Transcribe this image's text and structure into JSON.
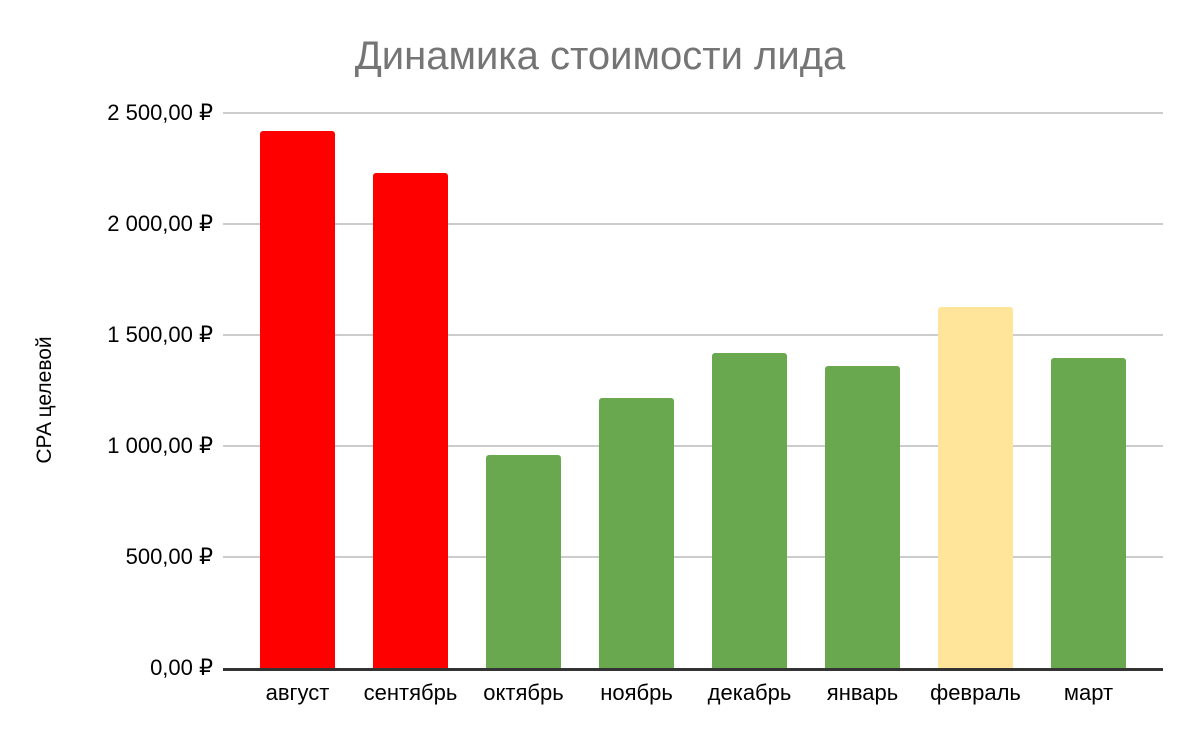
{
  "chart_data": {
    "type": "bar",
    "title": "Динамика стоимости лида",
    "xlabel": "",
    "ylabel": "CPA целевой",
    "categories": [
      "август",
      "сентябрь",
      "октябрь",
      "ноябрь",
      "декабрь",
      "январь",
      "февраль",
      "март"
    ],
    "values": [
      2420,
      2230,
      960,
      1215,
      1420,
      1360,
      1625,
      1395
    ],
    "bar_colors": [
      "#ff0000",
      "#ff0000",
      "#6aa84f",
      "#6aa84f",
      "#6aa84f",
      "#6aa84f",
      "#ffe599",
      "#6aa84f"
    ],
    "ylim": [
      0,
      2500
    ],
    "yticks": [
      0,
      500,
      1000,
      1500,
      2000,
      2500
    ],
    "ytick_labels": [
      "0,00 ₽",
      "500,00 ₽",
      "1 000,00 ₽",
      "1 500,00 ₽",
      "2 000,00 ₽",
      "2 500,00 ₽"
    ],
    "grid": true,
    "legend_position": "none"
  },
  "style": {
    "title_color": "#757575",
    "gridline_color": "#cccccc",
    "axis_line_color": "#333333",
    "label_color": "#000000",
    "background": "#ffffff"
  }
}
